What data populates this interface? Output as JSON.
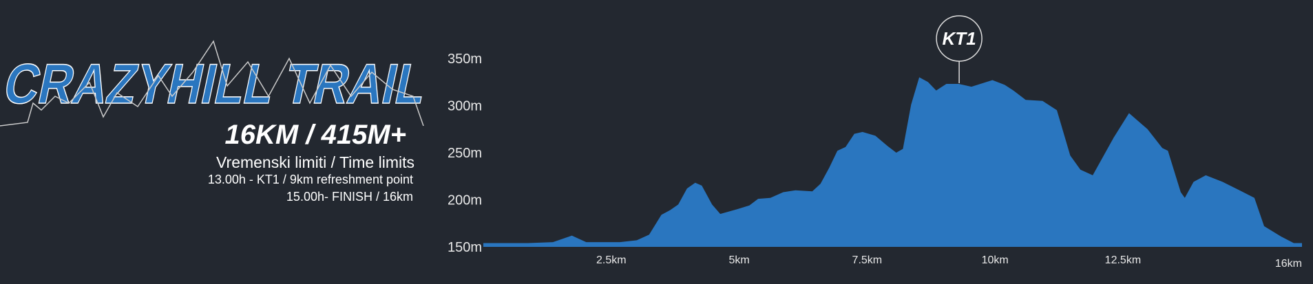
{
  "header": {
    "title": "CRAZYHILL TRAIL",
    "subtitle": "16KM / 415M+",
    "limits_title": "Vremenski limiti / Time limits",
    "limits": [
      "13.00h - KT1 / 9km refreshment point",
      "15.00h- FINISH / 16km"
    ]
  },
  "chart_data": {
    "type": "area",
    "color": "#2a76bf",
    "x": [
      0,
      0.87,
      1.36,
      1.73,
      2.01,
      2.67,
      3.0,
      3.24,
      3.48,
      3.65,
      3.81,
      3.98,
      4.14,
      4.27,
      4.47,
      4.63,
      4.96,
      5.2,
      5.37,
      5.61,
      5.86,
      6.1,
      6.43,
      6.59,
      6.76,
      6.92,
      7.08,
      7.25,
      7.41,
      7.66,
      7.9,
      8.07,
      8.2,
      8.36,
      8.52,
      8.69,
      8.85,
      9.05,
      9.29,
      9.54,
      9.95,
      10.19,
      10.36,
      10.6,
      10.93,
      11.21,
      11.47,
      11.67,
      11.91,
      12.32,
      12.62,
      12.98,
      13.27,
      13.38,
      13.63,
      13.71,
      13.88,
      14.12,
      14.45,
      14.78,
      15.07,
      15.26,
      15.59,
      15.84,
      16
    ],
    "y": [
      154,
      154,
      155,
      162,
      155,
      155,
      157,
      163,
      184,
      189,
      195,
      212,
      218,
      215,
      195,
      185,
      190,
      194,
      201,
      202,
      208,
      210,
      209,
      217,
      234,
      252,
      256,
      270,
      272,
      268,
      257,
      250,
      254,
      301,
      330,
      325,
      316,
      323,
      323,
      320,
      327,
      322,
      316,
      306,
      305,
      295,
      247,
      232,
      226,
      266,
      292,
      275,
      255,
      252,
      208,
      202,
      219,
      226,
      219,
      210,
      202,
      172,
      161,
      154,
      154
    ],
    "xlim": [
      0,
      16
    ],
    "ylim": [
      150,
      350
    ],
    "xticks": [
      {
        "value": 2.5,
        "label": "2.5km"
      },
      {
        "value": 5,
        "label": "5km"
      },
      {
        "value": 7.5,
        "label": "7.5km"
      },
      {
        "value": 10,
        "label": "10km"
      },
      {
        "value": 12.5,
        "label": "12.5km"
      },
      {
        "value": 16,
        "label": "16km"
      }
    ],
    "yticks": [
      {
        "value": 150,
        "label": "150m"
      },
      {
        "value": 200,
        "label": "200m"
      },
      {
        "value": 250,
        "label": "250m"
      },
      {
        "value": 300,
        "label": "300m"
      },
      {
        "value": 350,
        "label": "350m"
      }
    ],
    "annotations": [
      {
        "text": "KT1",
        "x": 9.3
      }
    ]
  }
}
